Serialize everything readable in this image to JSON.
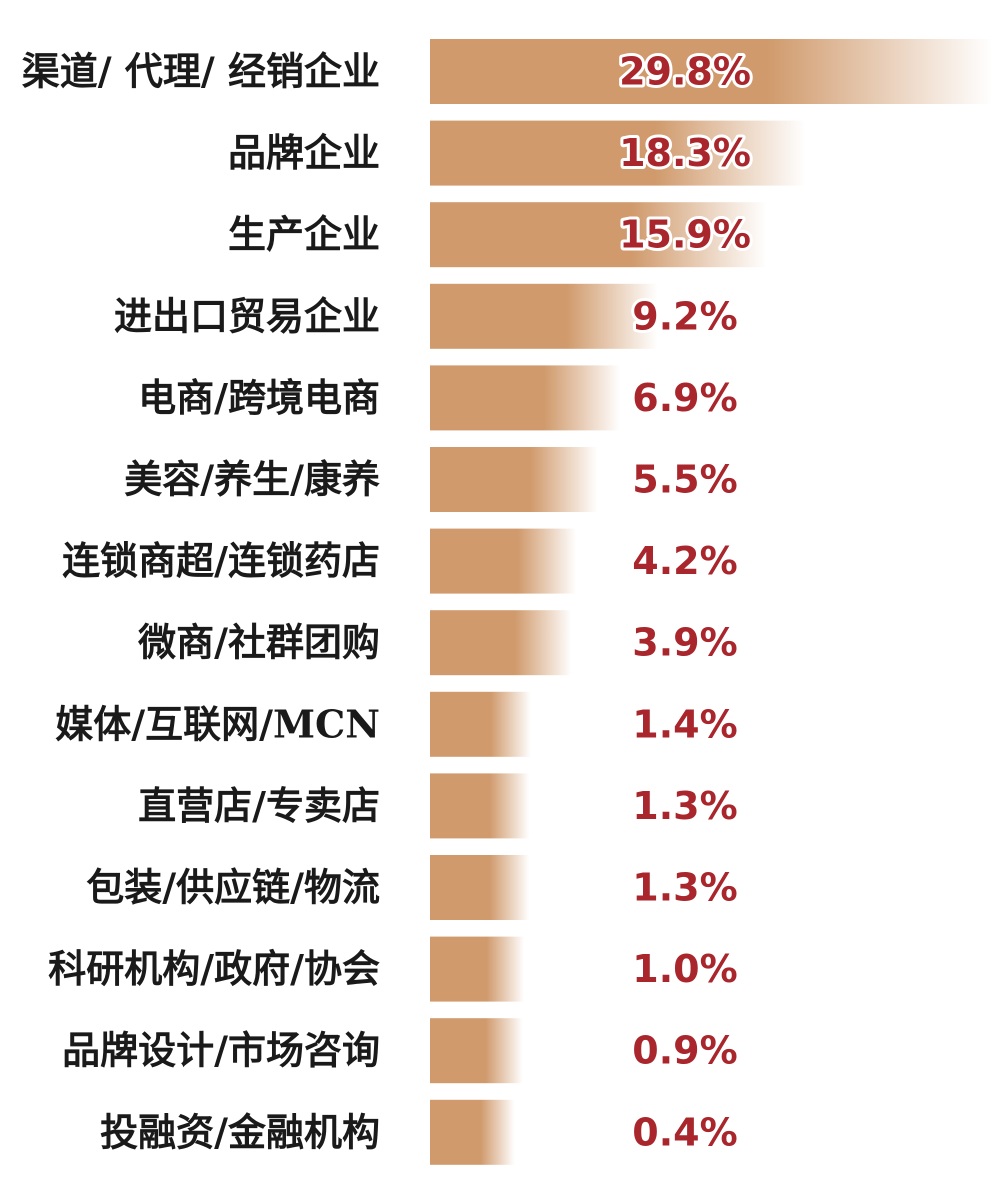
{
  "chart_data": {
    "type": "bar",
    "orientation": "horizontal",
    "categories": [
      "渠道/ 代理/ 经销企业",
      "品牌企业",
      "生产企业",
      "进出口贸易企业",
      "电商/跨境电商",
      "美容/养生/康养",
      "连锁商超/连锁药店",
      "微商/社群团购",
      "媒体/互联网/MCN",
      "直营店/专卖店",
      "包装/供应链/物流",
      "科研机构/政府/协会",
      "品牌设计/市场咨询",
      "投融资/金融机构"
    ],
    "values": [
      29.8,
      18.3,
      15.9,
      9.2,
      6.9,
      5.5,
      4.2,
      3.9,
      1.4,
      1.3,
      1.3,
      1.0,
      0.9,
      0.4
    ],
    "value_labels": [
      "29.8%",
      "18.3%",
      "15.9%",
      "9.2%",
      "6.9%",
      "5.5%",
      "4.2%",
      "3.9%",
      "1.4%",
      "1.3%",
      "1.3%",
      "1.0%",
      "0.9%",
      "0.4%"
    ],
    "unit": "%",
    "title": "",
    "xlabel": "",
    "ylabel": "",
    "grid": false,
    "legend": "none",
    "bar_color": "#d09a6c",
    "value_label_color": "#a8262c",
    "category_label_color": "#1a1a1a"
  }
}
